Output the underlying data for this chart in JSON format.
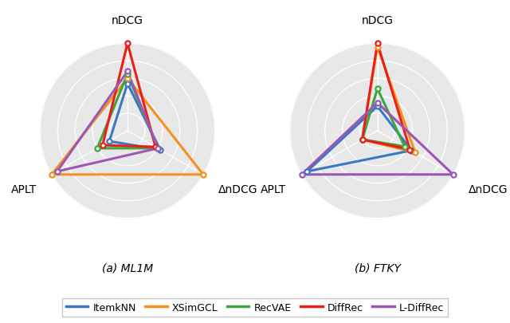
{
  "categories": [
    "nDCG",
    "ΔnDCG",
    "APLT"
  ],
  "models": [
    "ItemkNN",
    "XSimGCL",
    "RecVAE",
    "DiffRec",
    "L-DiffRec"
  ],
  "colors": [
    "#3b78c3",
    "#f5921e",
    "#3ca73e",
    "#e8201a",
    "#9b57b5"
  ],
  "ml1m": {
    "ItemkNN": [
      0.54,
      0.43,
      0.24
    ],
    "XSimGCL": [
      0.6,
      1.0,
      1.0
    ],
    "RecVAE": [
      0.65,
      0.4,
      0.4
    ],
    "DiffRec": [
      1.0,
      0.37,
      0.33
    ],
    "L-DiffRec": [
      0.68,
      0.4,
      0.93
    ]
  },
  "ftky": {
    "ItemkNN": [
      0.28,
      0.45,
      0.93
    ],
    "XSimGCL": [
      0.96,
      0.5,
      0.2
    ],
    "RecVAE": [
      0.48,
      0.36,
      0.2
    ],
    "DiffRec": [
      1.0,
      0.43,
      0.2
    ],
    "L-DiffRec": [
      0.32,
      1.0,
      1.0
    ]
  },
  "subtitles": [
    "(a) ML1M",
    "(b) FTKY"
  ],
  "num_rings": 5,
  "background_color": "#e8e8e8",
  "ring_color": "#ffffff",
  "angles_deg": [
    90,
    330,
    210
  ]
}
